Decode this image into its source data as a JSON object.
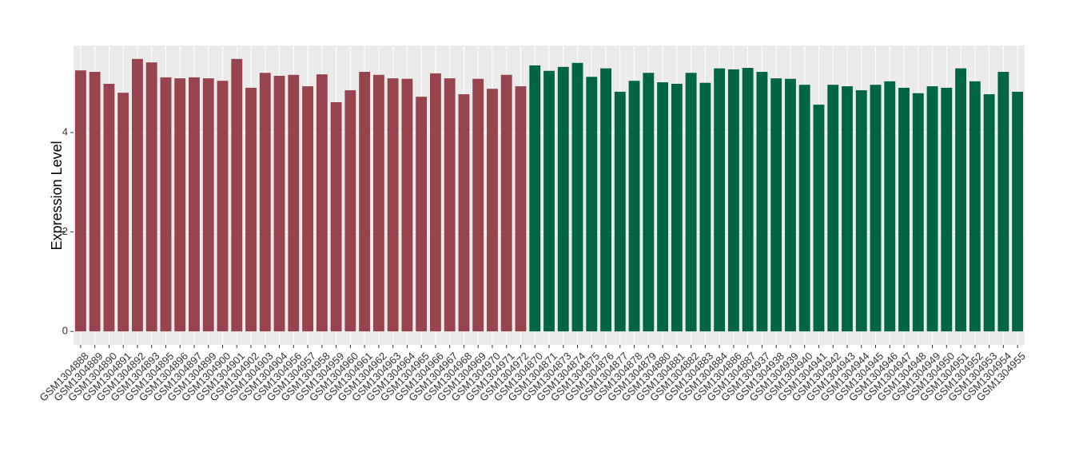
{
  "chart_data": {
    "type": "bar",
    "y_label": "Expression Level",
    "categories": [
      "GSM1304888",
      "GSM1304889",
      "GSM1304890",
      "GSM1304891",
      "GSM1304892",
      "GSM1304893",
      "GSM1304895",
      "GSM1304896",
      "GSM1304897",
      "GSM1304899",
      "GSM1304900",
      "GSM1304901",
      "GSM1304902",
      "GSM1304903",
      "GSM1304904",
      "GSM1304956",
      "GSM1304957",
      "GSM1304958",
      "GSM1304959",
      "GSM1304960",
      "GSM1304961",
      "GSM1304962",
      "GSM1304963",
      "GSM1304964",
      "GSM1304965",
      "GSM1304966",
      "GSM1304967",
      "GSM1304968",
      "GSM1304969",
      "GSM1304970",
      "GSM1304971",
      "GSM1304972",
      "GSM1304870",
      "GSM1304871",
      "GSM1304873",
      "GSM1304874",
      "GSM1304875",
      "GSM1304876",
      "GSM1304877",
      "GSM1304878",
      "GSM1304879",
      "GSM1304880",
      "GSM1304881",
      "GSM1304882",
      "GSM1304883",
      "GSM1304884",
      "GSM1304886",
      "GSM1304887",
      "GSM1304937",
      "GSM1304938",
      "GSM1304939",
      "GSM1304940",
      "GSM1304941",
      "GSM1304942",
      "GSM1304943",
      "GSM1304944",
      "GSM1304945",
      "GSM1304946",
      "GSM1304947",
      "GSM1304948",
      "GSM1304949",
      "GSM1304950",
      "GSM1304951",
      "GSM1304952",
      "GSM1304953",
      "GSM1304954",
      "GSM1304955"
    ],
    "values": [
      5.25,
      5.22,
      4.98,
      4.8,
      5.48,
      5.41,
      5.11,
      5.09,
      5.11,
      5.09,
      5.04,
      5.48,
      4.9,
      5.2,
      5.14,
      5.16,
      4.93,
      5.17,
      4.61,
      4.85,
      5.22,
      5.16,
      5.09,
      5.08,
      4.72,
      5.19,
      5.09,
      4.77,
      5.08,
      4.88,
      5.16,
      4.93,
      5.35,
      5.24,
      5.32,
      5.4,
      5.12,
      5.29,
      4.82,
      5.04,
      5.2,
      5.01,
      4.98,
      5.2,
      5.0,
      5.29,
      5.27,
      5.3,
      5.22,
      5.09,
      5.08,
      4.96,
      4.56,
      4.96,
      4.93,
      4.85,
      4.96,
      5.03,
      4.9,
      4.79,
      4.93,
      4.9,
      5.29,
      5.03,
      4.77,
      5.22,
      4.82
    ],
    "colors": [
      "#98444f",
      "#98444f",
      "#98444f",
      "#98444f",
      "#98444f",
      "#98444f",
      "#98444f",
      "#98444f",
      "#98444f",
      "#98444f",
      "#98444f",
      "#98444f",
      "#98444f",
      "#98444f",
      "#98444f",
      "#98444f",
      "#98444f",
      "#98444f",
      "#98444f",
      "#98444f",
      "#98444f",
      "#98444f",
      "#98444f",
      "#98444f",
      "#98444f",
      "#98444f",
      "#98444f",
      "#98444f",
      "#98444f",
      "#98444f",
      "#98444f",
      "#98444f",
      "#006543",
      "#006543",
      "#006543",
      "#006543",
      "#006543",
      "#006543",
      "#006543",
      "#006543",
      "#006543",
      "#006543",
      "#006543",
      "#006543",
      "#006543",
      "#006543",
      "#006543",
      "#006543",
      "#006543",
      "#006543",
      "#006543",
      "#006543",
      "#006543",
      "#006543",
      "#006543",
      "#006543",
      "#006543",
      "#006543",
      "#006543",
      "#006543",
      "#006543",
      "#006543",
      "#006543",
      "#006543",
      "#006543",
      "#006543",
      "#006543"
    ],
    "ylim": [
      -0.27,
      5.75
    ],
    "yticks": [
      0,
      2,
      4
    ],
    "grid": true
  }
}
